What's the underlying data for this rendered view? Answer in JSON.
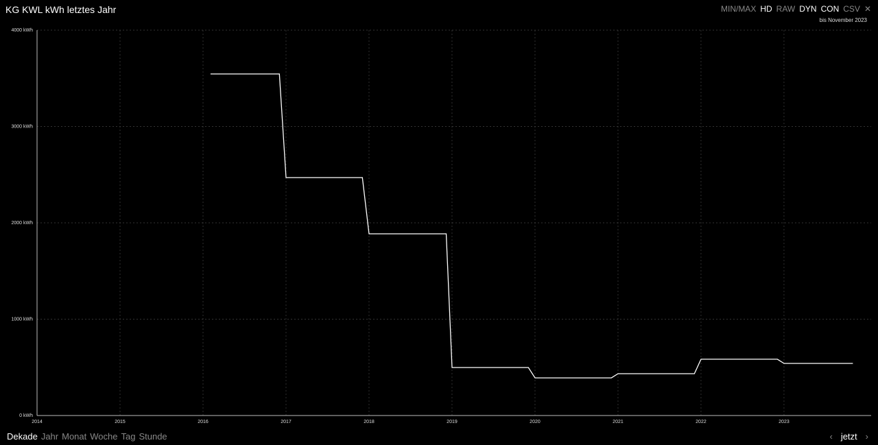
{
  "chart_data": {
    "type": "line",
    "title": "KG KWL kWh letztes Jahr",
    "subtitle": "bis November 2023",
    "x": [
      2016.09,
      2016.92,
      2017.0,
      2017.92,
      2018.0,
      2018.93,
      2019.0,
      2019.92,
      2020.0,
      2020.92,
      2021.0,
      2021.92,
      2022.0,
      2022.92,
      2023.0,
      2023.83
    ],
    "values": [
      3545,
      3545,
      2470,
      2470,
      1886,
      1886,
      498,
      498,
      391,
      391,
      434,
      434,
      584,
      584,
      541,
      541
    ],
    "color": "#ffffff",
    "xlim": [
      2014,
      2024.05
    ],
    "xticks": [
      2014,
      2015,
      2016,
      2017,
      2018,
      2019,
      2020,
      2021,
      2022,
      2023
    ],
    "ylim": [
      0,
      4000
    ],
    "yticks": [
      {
        "value": 0,
        "label": "0 kWh"
      },
      {
        "value": 1000,
        "label": "1000 kWh"
      },
      {
        "value": 2000,
        "label": "2000 kWh"
      },
      {
        "value": 3000,
        "label": "3000 kWh"
      },
      {
        "value": 4000,
        "label": "4000 kWh"
      }
    ],
    "grid": true
  },
  "header": {
    "buttons": [
      {
        "label": "MIN/MAX",
        "active": false
      },
      {
        "label": "HD",
        "active": true
      },
      {
        "label": "RAW",
        "active": false
      },
      {
        "label": "DYN",
        "active": true
      },
      {
        "label": "CON",
        "active": true
      },
      {
        "label": "CSV",
        "active": false
      }
    ]
  },
  "footer": {
    "ranges": [
      {
        "label": "Dekade",
        "active": true
      },
      {
        "label": "Jahr",
        "active": false
      },
      {
        "label": "Monat",
        "active": false
      },
      {
        "label": "Woche",
        "active": false
      },
      {
        "label": "Tag",
        "active": false
      },
      {
        "label": "Stunde",
        "active": false
      }
    ],
    "now": "jetzt"
  }
}
